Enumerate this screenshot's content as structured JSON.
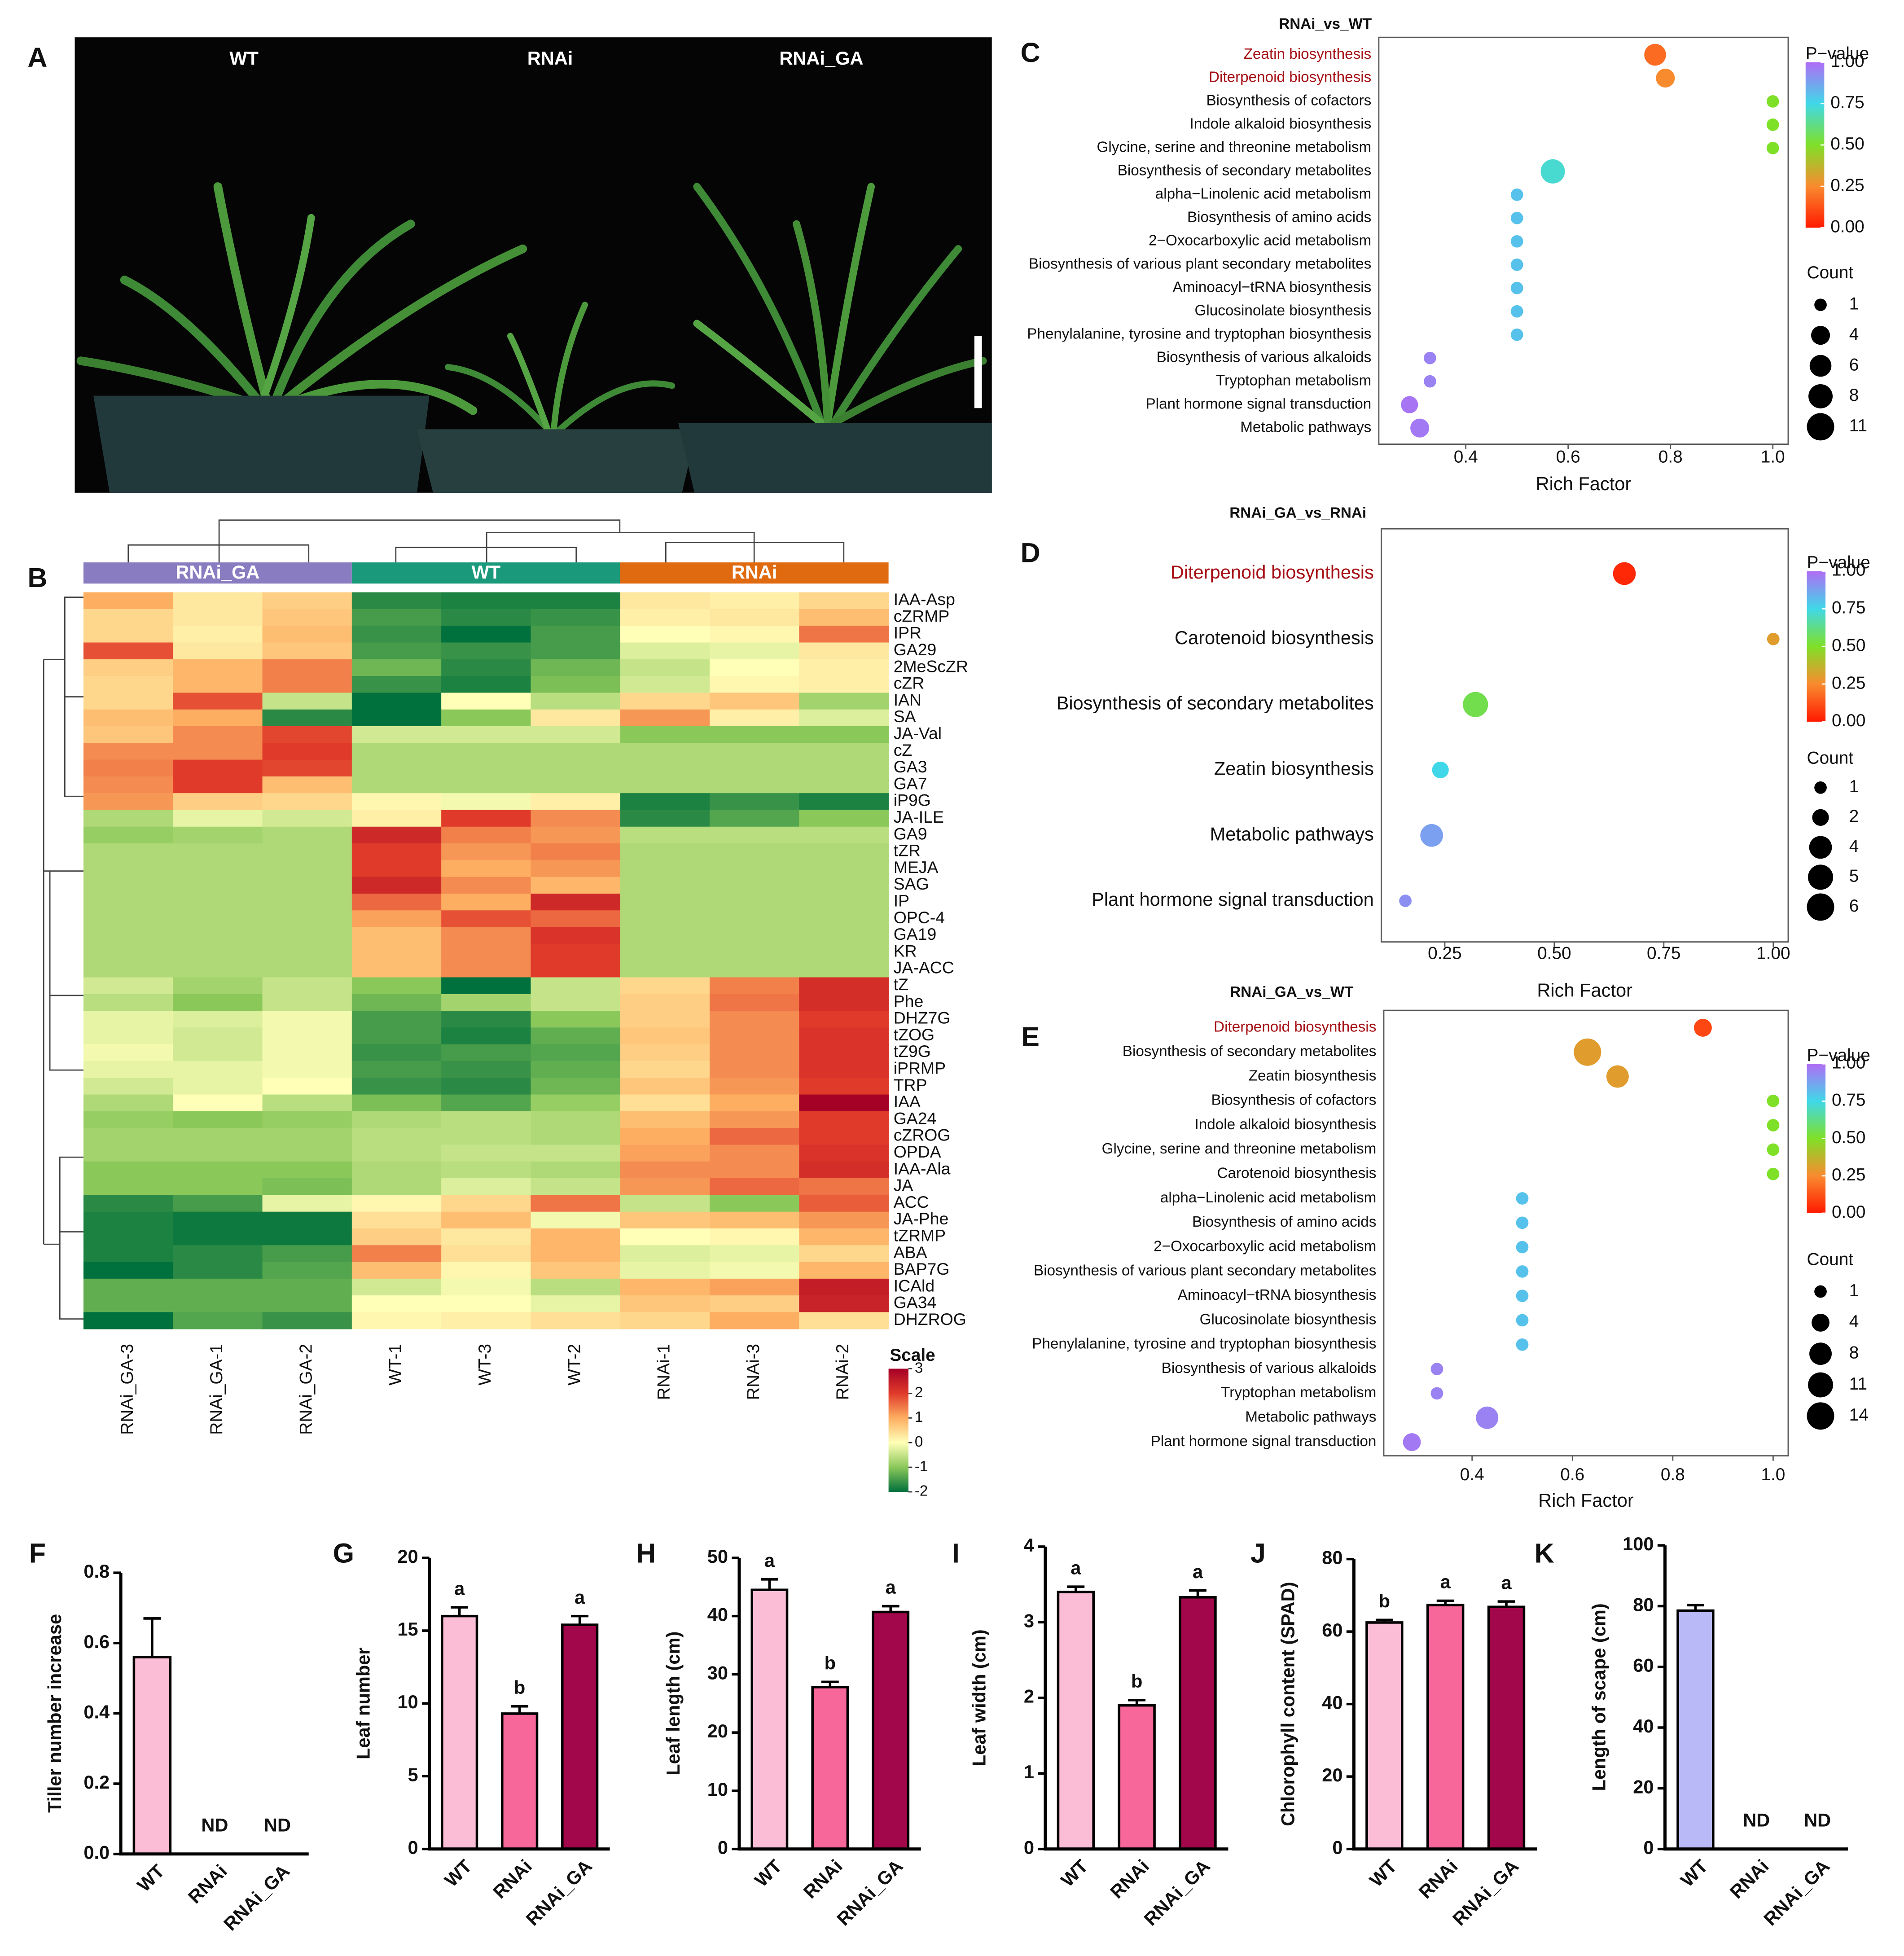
{
  "photo": {
    "panel": "A",
    "labels": [
      "WT",
      "RNAi",
      "RNAi_GA"
    ]
  },
  "chart_data": [
    {
      "type": "heatmap",
      "panel": "B",
      "groups": [
        {
          "name": "RNAi_GA",
          "color": "#8a7cc0"
        },
        {
          "name": "WT",
          "color": "#1a9a7a"
        },
        {
          "name": "RNAi",
          "color": "#e06a10"
        }
      ],
      "columns": [
        "RNAi_GA-3",
        "RNAi_GA-1",
        "RNAi_GA-2",
        "WT-1",
        "WT-3",
        "WT-2",
        "RNAi-1",
        "RNAi-3",
        "RNAi-2"
      ],
      "rows": [
        "IAA-Asp",
        "cZRMP",
        "IPR",
        "GA29",
        "2MeScZR",
        "cZR",
        "IAN",
        "SA",
        "JA-Val",
        "cZ",
        "GA3",
        "GA7",
        "iP9G",
        "JA-ILE",
        "GA9",
        "tZR",
        "MEJA",
        "SAG",
        "IP",
        "OPC-4",
        "GA19",
        "KR",
        "JA-ACC",
        "tZ",
        "Phe",
        "DHZ7G",
        "tZOG",
        "tZ9G",
        "iPRMP",
        "TRP",
        "IAA",
        "GA24",
        "cZROG",
        "OPDA",
        "IAA-Ala",
        "JA",
        "ACC",
        "JA-Phe",
        "tZRMP",
        "ABA",
        "BAP7G",
        "ICAld",
        "GA34",
        "DHZROG"
      ],
      "values": [
        [
          1,
          0.3,
          0.6,
          -1.7,
          -1.8,
          -1.8,
          0.3,
          0.2,
          0.5
        ],
        [
          0.5,
          0.3,
          0.7,
          -1.5,
          -1.7,
          -1.6,
          0.2,
          0.3,
          0.8
        ],
        [
          0.5,
          0.2,
          0.8,
          -1.6,
          -2,
          -1.5,
          0,
          0.1,
          1.5
        ],
        [
          1.8,
          0.3,
          0.7,
          -1.5,
          -1.6,
          -1.5,
          -0.3,
          -0.2,
          0.3
        ],
        [
          0.6,
          0.9,
          1.4,
          -1.2,
          -1.7,
          -1.2,
          -0.5,
          0,
          0.2
        ],
        [
          0.5,
          0.9,
          1.4,
          -1.6,
          -1.8,
          -1.1,
          -0.4,
          0.1,
          0.2
        ],
        [
          0.5,
          1.8,
          -0.5,
          -2,
          0,
          -0.6,
          0.5,
          0.7,
          -0.8
        ],
        [
          0.8,
          1,
          -1.7,
          -2,
          -1,
          0.3,
          1.2,
          0.2,
          -0.3
        ],
        [
          0.7,
          1.3,
          1.9,
          -0.4,
          -0.4,
          -0.4,
          -1,
          -1,
          -1
        ],
        [
          1.3,
          1.3,
          2,
          -0.7,
          -0.7,
          -0.7,
          -0.7,
          -0.7,
          -0.7
        ],
        [
          1.4,
          2,
          1.9,
          -0.7,
          -0.7,
          -0.7,
          -0.7,
          -0.7,
          -0.7
        ],
        [
          1.3,
          2,
          0.8,
          -0.7,
          -0.7,
          -0.7,
          -0.7,
          -0.7,
          -0.7
        ],
        [
          1.2,
          0.6,
          0.5,
          0.1,
          -0.1,
          0.2,
          -1.8,
          -1.6,
          -1.8
        ],
        [
          -0.7,
          -0.2,
          -0.4,
          0.2,
          2,
          1.3,
          -1.7,
          -1.4,
          -1
        ],
        [
          -0.9,
          -0.8,
          -0.7,
          2.3,
          1.4,
          1.2,
          -0.6,
          -0.6,
          -0.6
        ],
        [
          -0.7,
          -0.7,
          -0.7,
          2,
          1.2,
          1.4,
          -0.7,
          -0.7,
          -0.7
        ],
        [
          -0.7,
          -0.7,
          -0.7,
          2,
          1,
          1.2,
          -0.7,
          -0.7,
          -0.7
        ],
        [
          -0.7,
          -0.7,
          -0.7,
          2.3,
          1.3,
          0.9,
          -0.7,
          -0.7,
          -0.7
        ],
        [
          -0.7,
          -0.7,
          -0.7,
          1.6,
          1,
          2.3,
          -0.7,
          -0.7,
          -0.7
        ],
        [
          -0.7,
          -0.7,
          -0.7,
          1.1,
          1.8,
          1.6,
          -0.7,
          -0.7,
          -0.7
        ],
        [
          -0.7,
          -0.7,
          -0.7,
          0.8,
          1.3,
          2.1,
          -0.7,
          -0.7,
          -0.7
        ],
        [
          -0.7,
          -0.7,
          -0.7,
          0.8,
          1.3,
          2,
          -0.7,
          -0.7,
          -0.7
        ],
        [
          -0.7,
          -0.7,
          -0.7,
          0.8,
          1.3,
          2,
          -0.7,
          -0.7,
          -0.7
        ],
        [
          -0.4,
          -0.8,
          -0.5,
          -1,
          -2,
          -0.5,
          0.5,
          1.4,
          2.2
        ],
        [
          -0.6,
          -1,
          -0.5,
          -1.2,
          -0.8,
          -0.5,
          0.6,
          1.5,
          2.2
        ],
        [
          -0.2,
          -0.3,
          -0.1,
          -1.5,
          -1.7,
          -1,
          0.6,
          1.3,
          2
        ],
        [
          -0.2,
          -0.4,
          -0.1,
          -1.5,
          -1.8,
          -1.3,
          0.7,
          1.3,
          2.1
        ],
        [
          -0.1,
          -0.4,
          -0.1,
          -1.6,
          -1.5,
          -1.4,
          0.6,
          1.3,
          2.1
        ],
        [
          -0.2,
          -0.2,
          -0.1,
          -1.5,
          -1.6,
          -1.3,
          0.5,
          1.3,
          2.1
        ],
        [
          -0.4,
          -0.2,
          0,
          -1.6,
          -1.7,
          -1.2,
          0.7,
          1.2,
          2
        ],
        [
          -0.7,
          0,
          -0.6,
          -1.1,
          -1.4,
          -0.9,
          0.4,
          1,
          3
        ],
        [
          -0.9,
          -1,
          -0.9,
          -0.7,
          -0.6,
          -0.7,
          0.8,
          1.2,
          2
        ],
        [
          -0.8,
          -0.8,
          -0.8,
          -0.6,
          -0.6,
          -0.7,
          1,
          1.6,
          2
        ],
        [
          -0.8,
          -0.8,
          -0.8,
          -0.6,
          -0.5,
          -0.5,
          1.1,
          1.3,
          2.1
        ],
        [
          -1,
          -1,
          -1,
          -0.7,
          -0.6,
          -0.7,
          1.3,
          1.3,
          2.2
        ],
        [
          -1,
          -1,
          -1.1,
          -0.7,
          -0.3,
          -0.5,
          1.2,
          1.6,
          1.5
        ],
        [
          -1.7,
          -1.5,
          -0.2,
          0.1,
          0.5,
          1.5,
          -0.5,
          -1,
          1.7
        ],
        [
          -1.8,
          -1.9,
          -1.9,
          0.4,
          0.8,
          -0.1,
          0.7,
          0.8,
          1.2
        ],
        [
          -1.8,
          -1.9,
          -1.9,
          0.6,
          0.3,
          0.9,
          0,
          0.1,
          0.9
        ],
        [
          -1.8,
          -1.7,
          -1.5,
          1.4,
          0.4,
          0.9,
          -0.3,
          -0.2,
          0.5
        ],
        [
          -2,
          -1.7,
          -1.4,
          0.8,
          0.1,
          0.7,
          -0.2,
          -0.1,
          0.9
        ],
        [
          -1.3,
          -1.3,
          -1.3,
          -0.4,
          -0.1,
          -0.6,
          0.9,
          1.1,
          2.5
        ],
        [
          -1.3,
          -1.3,
          -1.3,
          0,
          0,
          -0.2,
          0.7,
          0.6,
          2.4
        ],
        [
          -2,
          -1.4,
          -1.6,
          0.1,
          0.2,
          0.4,
          0.5,
          1,
          0.4
        ]
      ],
      "colorscale_label": "Scale",
      "clim": [
        -2,
        3
      ],
      "cticks": [
        3,
        2,
        1,
        0,
        -1,
        -2
      ],
      "palette": [
        "#00703c",
        "#8bc85a",
        "#ffffb8",
        "#fdae61",
        "#e03a2a",
        "#a50026"
      ]
    },
    {
      "type": "bubble",
      "panel": "C",
      "title": "RNAi_vs_WT",
      "xlabel": "Rich Factor",
      "categories": [
        "Zeatin biosynthesis",
        "Diterpenoid biosynthesis",
        "Biosynthesis of cofactors",
        "Indole alkaloid biosynthesis",
        "Glycine, serine and threonine metabolism",
        "Biosynthesis of secondary metabolites",
        "alpha−Linolenic acid metabolism",
        "Biosynthesis of amino acids",
        "2−Oxocarboxylic acid metabolism",
        "Biosynthesis of various plant secondary metabolites",
        "Aminoacyl−tRNA biosynthesis",
        "Glucosinolate biosynthesis",
        "Phenylalanine, tyrosine and tryptophan biosynthesis",
        "Biosynthesis of various alkaloids",
        "Tryptophan metabolism",
        "Plant hormone signal transduction",
        "Metabolic pathways"
      ],
      "x": [
        0.77,
        0.79,
        1,
        1,
        1,
        0.57,
        0.5,
        0.5,
        0.5,
        0.5,
        0.5,
        0.5,
        0.5,
        0.33,
        0.33,
        0.29,
        0.31
      ],
      "pvalue": [
        0.18,
        0.25,
        0.5,
        0.5,
        0.5,
        0.72,
        0.8,
        0.8,
        0.8,
        0.8,
        0.8,
        0.8,
        0.8,
        0.95,
        0.95,
        0.98,
        0.97
      ],
      "count": [
        6,
        4,
        1,
        1,
        1,
        8,
        1,
        1,
        1,
        1,
        1,
        1,
        1,
        1,
        1,
        3,
        4
      ],
      "highlight": [
        0,
        1
      ],
      "highlight_color": "#a50f15",
      "xlim": [
        0.23,
        1.03
      ],
      "xticks": [
        0.4,
        0.6,
        0.8,
        {
          "value": 1,
          "label": "1.0"
        }
      ],
      "color_title": "P−value",
      "clim": [
        0,
        1
      ],
      "cticks": [
        {
          "value": 1,
          "label": "1.00"
        },
        0.75,
        {
          "value": 0.5,
          "label": "0.50"
        },
        0.25,
        {
          "value": 0,
          "label": "0.00"
        }
      ],
      "palette": [
        "#ff1a00",
        "#f98b2f",
        "#7fe028",
        "#40d8e8",
        "#b06cf5"
      ],
      "count_title": "Count",
      "count_legend": [
        1,
        4,
        6,
        8,
        11
      ]
    },
    {
      "type": "bubble",
      "panel": "D",
      "title": "RNAi_GA_vs_RNAi",
      "xlabel": "Rich Factor",
      "categories": [
        "Diterpenoid biosynthesis",
        "Carotenoid biosynthesis",
        "Biosynthesis of secondary metabolites",
        "Zeatin biosynthesis",
        "Metabolic pathways",
        "Plant hormone signal transduction"
      ],
      "x": [
        0.66,
        1,
        0.32,
        0.24,
        0.22,
        0.16
      ],
      "pvalue": [
        0.03,
        0.3,
        0.55,
        0.75,
        0.88,
        0.92
      ],
      "count": [
        4,
        1,
        5,
        2,
        4,
        1
      ],
      "highlight": [
        0
      ],
      "highlight_color": "#a50f15",
      "xlim": [
        0.105,
        1.034
      ],
      "xticks": [
        0.25,
        {
          "value": 0.5,
          "label": "0.50"
        },
        0.75,
        {
          "value": 1,
          "label": "1.00"
        }
      ],
      "color_title": "P−value",
      "clim": [
        0,
        1
      ],
      "cticks": [
        {
          "value": 1,
          "label": "1.00"
        },
        0.75,
        {
          "value": 0.5,
          "label": "0.50"
        },
        0.25,
        {
          "value": 0,
          "label": "0.00"
        }
      ],
      "palette": [
        "#ff1a00",
        "#f98b2f",
        "#7fe028",
        "#40d8e8",
        "#b06cf5"
      ],
      "count_title": "Count",
      "count_legend": [
        1,
        2,
        4,
        5,
        6
      ]
    },
    {
      "type": "bubble",
      "panel": "E",
      "title": "RNAi_GA_vs_WT",
      "xlabel": "Rich Factor",
      "categories": [
        "Diterpenoid biosynthesis",
        "Biosynthesis of secondary metabolites",
        "Zeatin biosynthesis",
        "Biosynthesis of cofactors",
        "Indole alkaloid biosynthesis",
        "Glycine, serine and threonine metabolism",
        "Carotenoid biosynthesis",
        "alpha−Linolenic acid metabolism",
        "Biosynthesis of amino acids",
        "2−Oxocarboxylic acid metabolism",
        "Biosynthesis of various plant secondary metabolites",
        "Aminoacyl−tRNA biosynthesis",
        "Glucosinolate biosynthesis",
        "Phenylalanine, tyrosine and tryptophan biosynthesis",
        "Biosynthesis of various alkaloids",
        "Tryptophan metabolism",
        "Metabolic pathways",
        "Plant hormone signal transduction"
      ],
      "x": [
        0.86,
        0.63,
        0.69,
        1,
        1,
        1,
        1,
        0.5,
        0.5,
        0.5,
        0.5,
        0.5,
        0.5,
        0.5,
        0.33,
        0.33,
        0.43,
        0.28
      ],
      "pvalue": [
        0.1,
        0.3,
        0.3,
        0.5,
        0.5,
        0.5,
        0.5,
        0.8,
        0.8,
        0.8,
        0.8,
        0.8,
        0.8,
        0.8,
        0.95,
        0.95,
        0.95,
        0.97
      ],
      "count": [
        4,
        14,
        8,
        1,
        1,
        1,
        1,
        1,
        1,
        1,
        1,
        1,
        1,
        1,
        1,
        1,
        8,
        4
      ],
      "highlight": [
        0
      ],
      "highlight_color": "#a50f15",
      "xlim": [
        0.224,
        1.03
      ],
      "xticks": [
        0.4,
        0.6,
        0.8,
        {
          "value": 1,
          "label": "1.0"
        }
      ],
      "color_title": "P−value",
      "clim": [
        0,
        1
      ],
      "cticks": [
        {
          "value": 1,
          "label": "1.00"
        },
        0.75,
        {
          "value": 0.5,
          "label": "0.50"
        },
        0.25,
        {
          "value": 0,
          "label": "0.00"
        }
      ],
      "palette": [
        "#ff1a00",
        "#f98b2f",
        "#7fe028",
        "#40d8e8",
        "#b06cf5"
      ],
      "count_title": "Count",
      "count_legend": [
        1,
        4,
        8,
        11,
        14
      ]
    },
    {
      "type": "bar",
      "panel": "F",
      "ylabel": "Tiller number increase",
      "categories": [
        "WT",
        "RNAi",
        "RNAi_GA"
      ],
      "values": [
        0.56,
        null,
        null
      ],
      "errors": [
        0.11,
        null,
        null
      ],
      "annotations": [
        null,
        "ND",
        "ND"
      ],
      "colors": [
        "#fbbdd5",
        "#f7679a",
        "#a3074b"
      ],
      "ylim": [
        0,
        0.8
      ],
      "yticks": [
        {
          "value": 0,
          "label": "0.0"
        },
        0.2,
        0.4,
        0.6,
        0.8
      ]
    },
    {
      "type": "bar",
      "panel": "G",
      "ylabel": "Leaf number",
      "categories": [
        "WT",
        "RNAi",
        "RNAi_GA"
      ],
      "values": [
        16,
        9.3,
        15.4
      ],
      "errors": [
        0.6,
        0.5,
        0.6
      ],
      "letters": [
        "a",
        "b",
        "a"
      ],
      "colors": [
        "#fbbdd5",
        "#f7679a",
        "#a3074b"
      ],
      "ylim": [
        0,
        20
      ],
      "yticks": [
        0,
        5,
        10,
        15,
        20
      ]
    },
    {
      "type": "bar",
      "panel": "H",
      "ylabel": "Leaf length (cm)",
      "categories": [
        "WT",
        "RNAi",
        "RNAi_GA"
      ],
      "values": [
        44.5,
        27.8,
        40.7
      ],
      "errors": [
        1.8,
        0.9,
        1
      ],
      "letters": [
        "a",
        "b",
        "a"
      ],
      "colors": [
        "#fbbdd5",
        "#f7679a",
        "#a3074b"
      ],
      "ylim": [
        0,
        50
      ],
      "yticks": [
        0,
        10,
        20,
        30,
        40,
        50
      ]
    },
    {
      "type": "bar",
      "panel": "I",
      "ylabel": "Leaf width (cm)",
      "categories": [
        "WT",
        "RNAi",
        "RNAi_GA"
      ],
      "values": [
        3.4,
        1.9,
        3.33
      ],
      "errors": [
        0.07,
        0.07,
        0.09
      ],
      "letters": [
        "a",
        "b",
        "a"
      ],
      "colors": [
        "#fbbdd5",
        "#f7679a",
        "#a3074b"
      ],
      "ylim": [
        0,
        4
      ],
      "yticks": [
        0,
        1,
        2,
        3,
        4
      ]
    },
    {
      "type": "bar",
      "panel": "J",
      "ylabel": "Chlorophyll content (SPAD)",
      "categories": [
        "WT",
        "RNAi",
        "RNAi_GA"
      ],
      "values": [
        62.5,
        67.3,
        66.8
      ],
      "errors": [
        0.7,
        1.2,
        1.5
      ],
      "letters": [
        "b",
        "a",
        "a"
      ],
      "colors": [
        "#fbbdd5",
        "#f7679a",
        "#a3074b"
      ],
      "ylim": [
        0,
        80
      ],
      "yticks": [
        0,
        20,
        40,
        60,
        80
      ]
    },
    {
      "type": "bar",
      "panel": "K",
      "ylabel": "Length of scape (cm)",
      "categories": [
        "WT",
        "RNAi",
        "RNAi_GA"
      ],
      "values": [
        78.5,
        null,
        null
      ],
      "errors": [
        1.8,
        null,
        null
      ],
      "annotations": [
        null,
        "ND",
        "ND"
      ],
      "colors": [
        "#b9b9f7",
        "#f7679a",
        "#a3074b"
      ],
      "ylim": [
        0,
        100
      ],
      "yticks": [
        0,
        20,
        40,
        60,
        80,
        100
      ]
    }
  ]
}
